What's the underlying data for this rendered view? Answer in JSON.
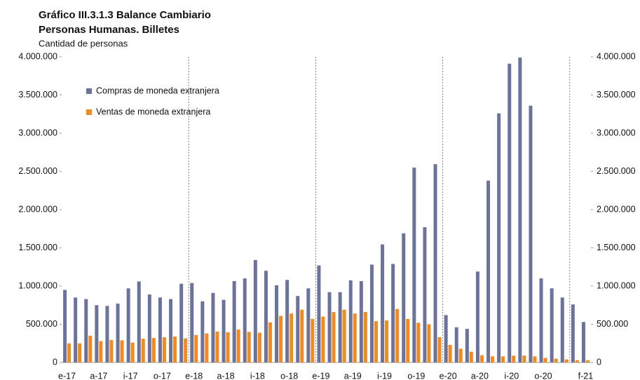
{
  "chart_data": {
    "type": "bar",
    "title": "Gráfico III.3.1.3 Balance Cambiario",
    "subtitle": "Personas Humanas. Billetes",
    "y_label": "Cantidad de personas",
    "categories": [
      "e-17",
      null,
      null,
      "a-17",
      null,
      null,
      "i-17",
      null,
      null,
      "o-17",
      null,
      null,
      "e-18",
      null,
      null,
      "a-18",
      null,
      null,
      "i-18",
      null,
      null,
      "o-18",
      null,
      null,
      "e-19",
      null,
      null,
      "a-19",
      null,
      null,
      "i-19",
      null,
      null,
      "o-19",
      null,
      null,
      "e-20",
      null,
      null,
      "a-20",
      null,
      null,
      "i-20",
      null,
      null,
      "o-20",
      null,
      null,
      null,
      "f-21"
    ],
    "series": [
      {
        "name": "Compras de moneda extranjera",
        "color": "#6b739c",
        "values": [
          950000,
          850000,
          830000,
          750000,
          740000,
          770000,
          970000,
          1060000,
          890000,
          850000,
          830000,
          1030000,
          1040000,
          800000,
          910000,
          820000,
          1065000,
          1100000,
          1340000,
          1200000,
          1010000,
          1080000,
          870000,
          970000,
          1270000,
          920000,
          920000,
          1075000,
          1065000,
          1280000,
          1545000,
          1290000,
          1690000,
          2550000,
          1770000,
          2595000,
          620000,
          460000,
          440000,
          1190000,
          2380000,
          3260000,
          3910000,
          3990000,
          3360000,
          1100000,
          970000,
          850000,
          760000,
          530000
        ]
      },
      {
        "name": "Ventas de moneda extranjera",
        "color": "#f28a1e",
        "values": [
          250000,
          250000,
          350000,
          280000,
          295000,
          290000,
          260000,
          310000,
          320000,
          330000,
          340000,
          315000,
          360000,
          380000,
          405000,
          395000,
          430000,
          400000,
          390000,
          525000,
          610000,
          640000,
          690000,
          570000,
          600000,
          660000,
          690000,
          640000,
          660000,
          540000,
          550000,
          700000,
          570000,
          520000,
          500000,
          330000,
          230000,
          180000,
          140000,
          95000,
          80000,
          80000,
          90000,
          90000,
          80000,
          60000,
          50000,
          40000,
          30000,
          30000
        ]
      }
    ],
    "ylim": [
      0,
      4000000
    ],
    "yticks": [
      0,
      {
        "value": 500000,
        "label": "500.000"
      },
      {
        "value": 1000000,
        "label": "1.000.000"
      },
      {
        "value": 1500000,
        "label": "1.500.000"
      },
      {
        "value": 2000000,
        "label": "2.000.000"
      },
      {
        "value": 2500000,
        "label": "2.500.000"
      },
      {
        "value": 3000000,
        "label": "3.000.000"
      },
      {
        "value": 3500000,
        "label": "3.500.000"
      },
      {
        "value": 4000000,
        "label": "4.000.000"
      }
    ],
    "y2lim": [
      0,
      4000000
    ],
    "y2ticks": [
      0,
      {
        "value": 500000,
        "label": "500.000"
      },
      {
        "value": 1000000,
        "label": "1.000.000"
      },
      {
        "value": 1500000,
        "label": "1.500.000"
      },
      {
        "value": 2000000,
        "label": "2.000.000"
      },
      {
        "value": 2500000,
        "label": "2.500.000"
      },
      {
        "value": 3000000,
        "label": "3.000.000"
      },
      {
        "value": 3500000,
        "label": "3.500.000"
      },
      {
        "value": 4000000,
        "label": "4.000.000"
      }
    ],
    "legend": "upper left"
  }
}
